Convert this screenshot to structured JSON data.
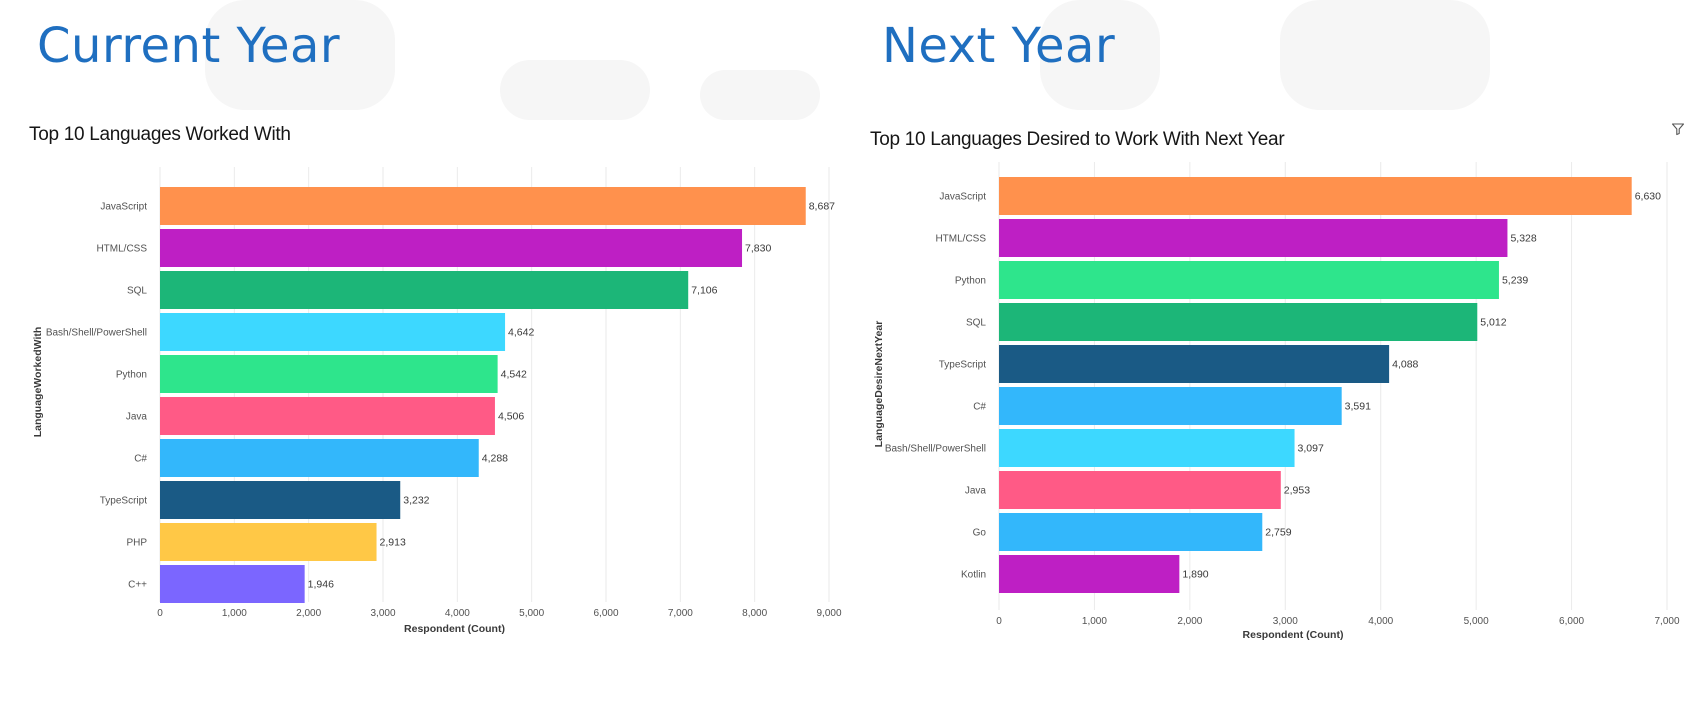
{
  "slide": {
    "left_heading": "Current Year",
    "right_heading": "Next Year"
  },
  "icons": {
    "filter": "filter-icon"
  },
  "chart_data": [
    {
      "type": "bar",
      "orientation": "horizontal",
      "title": "Top 10 Languages Worked With",
      "xlabel": "Respondent (Count)",
      "ylabel": "LanguageWorkedWith",
      "xlim": [
        0,
        9000
      ],
      "xticks": [
        0,
        1000,
        2000,
        3000,
        4000,
        5000,
        6000,
        7000,
        8000,
        9000
      ],
      "xtick_labels": [
        "0",
        "1,000",
        "2,000",
        "3,000",
        "4,000",
        "5,000",
        "6,000",
        "7,000",
        "8,000",
        "9,000"
      ],
      "grid": true,
      "categories": [
        "JavaScript",
        "HTML/CSS",
        "SQL",
        "Bash/Shell/PowerShell",
        "Python",
        "Java",
        "C#",
        "TypeScript",
        "PHP",
        "C++"
      ],
      "values": [
        8687,
        7830,
        7106,
        4642,
        4542,
        4506,
        4288,
        3232,
        2913,
        1946
      ],
      "value_labels": [
        "8,687",
        "7,830",
        "7,106",
        "4,642",
        "4,542",
        "4,506",
        "4,288",
        "3,232",
        "2,913",
        "1,946"
      ],
      "colors": [
        "#ff914d",
        "#be1fc4",
        "#1cb678",
        "#3dd8ff",
        "#2ee58c",
        "#ff5a86",
        "#33b7fb",
        "#1a5a85",
        "#ffc846",
        "#7b66ff"
      ]
    },
    {
      "type": "bar",
      "orientation": "horizontal",
      "title": "Top 10 Languages Desired to Work With Next Year",
      "xlabel": "Respondent (Count)",
      "ylabel": "LanguageDesireNextYear",
      "xlim": [
        0,
        7000
      ],
      "xticks": [
        0,
        1000,
        2000,
        3000,
        4000,
        5000,
        6000,
        7000
      ],
      "xtick_labels": [
        "0",
        "1,000",
        "2,000",
        "3,000",
        "4,000",
        "5,000",
        "6,000",
        "7,000"
      ],
      "grid": true,
      "categories": [
        "JavaScript",
        "HTML/CSS",
        "Python",
        "SQL",
        "TypeScript",
        "C#",
        "Bash/Shell/PowerShell",
        "Java",
        "Go",
        "Kotlin"
      ],
      "values": [
        6630,
        5328,
        5239,
        5012,
        4088,
        3591,
        3097,
        2953,
        2759,
        1890
      ],
      "value_labels": [
        "6,630",
        "5,328",
        "5,239",
        "5,012",
        "4,088",
        "3,591",
        "3,097",
        "2,953",
        "2,759",
        "1,890"
      ],
      "colors": [
        "#ff914d",
        "#be1fc4",
        "#2ee58c",
        "#1cb678",
        "#1a5a85",
        "#33b7fb",
        "#3dd8ff",
        "#ff5a86",
        "#33b7fb",
        "#be1fc4"
      ]
    }
  ]
}
